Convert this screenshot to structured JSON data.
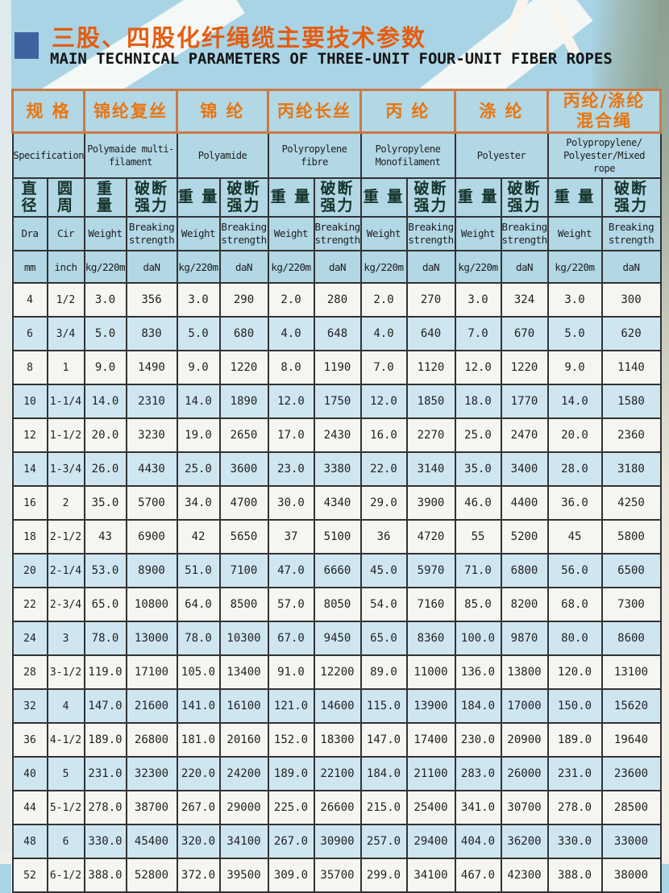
{
  "page": {
    "title_cn": "三股、四股化纤绳缆主要技术参数",
    "title_en": "MAIN TECHNICAL PARAMETERS OF THREE-UNIT FOUR-UNIT FIBER ROPES"
  },
  "table": {
    "spec_header": {
      "cn": "规 格",
      "en": "Specification"
    },
    "materials": [
      {
        "cn": "锦纶复丝",
        "en": "Polymaide multi-\nfilament"
      },
      {
        "cn": "锦 纶",
        "en": "Polyamide"
      },
      {
        "cn": "丙纶长丝",
        "en": "Polyropylene\nfibre"
      },
      {
        "cn": "丙 纶",
        "en": "Polyropylene\nMonofilament"
      },
      {
        "cn": "涤 纶",
        "en": "Polyester"
      },
      {
        "cn": "丙纶/涤纶\n混合绳",
        "en": "Polypropylene/\nPolyester/Mixed\nrope"
      }
    ],
    "sub_headers": {
      "diameter": {
        "cn": "直径",
        "en": "Dra",
        "unit": "mm"
      },
      "circumference": {
        "cn": "圆 周",
        "en": "Cir",
        "unit": "inch"
      },
      "weight": {
        "cn": "重 量",
        "en": "Weight",
        "unit": "kg/220m"
      },
      "breaking": {
        "cn": "破断\n强力",
        "en": "Breaking\nstrength",
        "unit": "daN"
      }
    },
    "rows": [
      [
        "4",
        "1/2",
        "3.0",
        "356",
        "3.0",
        "290",
        "2.0",
        "280",
        "2.0",
        "270",
        "3.0",
        "324",
        "3.0",
        "300"
      ],
      [
        "6",
        "3/4",
        "5.0",
        "830",
        "5.0",
        "680",
        "4.0",
        "648",
        "4.0",
        "640",
        "7.0",
        "670",
        "5.0",
        "620"
      ],
      [
        "8",
        "1",
        "9.0",
        "1490",
        "9.0",
        "1220",
        "8.0",
        "1190",
        "7.0",
        "1120",
        "12.0",
        "1220",
        "9.0",
        "1140"
      ],
      [
        "10",
        "1-1/4",
        "14.0",
        "2310",
        "14.0",
        "1890",
        "12.0",
        "1750",
        "12.0",
        "1850",
        "18.0",
        "1770",
        "14.0",
        "1580"
      ],
      [
        "12",
        "1-1/2",
        "20.0",
        "3230",
        "19.0",
        "2650",
        "17.0",
        "2430",
        "16.0",
        "2270",
        "25.0",
        "2470",
        "20.0",
        "2360"
      ],
      [
        "14",
        "1-3/4",
        "26.0",
        "4430",
        "25.0",
        "3600",
        "23.0",
        "3380",
        "22.0",
        "3140",
        "35.0",
        "3400",
        "28.0",
        "3180"
      ],
      [
        "16",
        "2",
        "35.0",
        "5700",
        "34.0",
        "4700",
        "30.0",
        "4340",
        "29.0",
        "3900",
        "46.0",
        "4400",
        "36.0",
        "4250"
      ],
      [
        "18",
        "2-1/2",
        "43",
        "6900",
        "42",
        "5650",
        "37",
        "5100",
        "36",
        "4720",
        "55",
        "5200",
        "45",
        "5800"
      ],
      [
        "20",
        "2-1/4",
        "53.0",
        "8900",
        "51.0",
        "7100",
        "47.0",
        "6660",
        "45.0",
        "5970",
        "71.0",
        "6800",
        "56.0",
        "6500"
      ],
      [
        "22",
        "2-3/4",
        "65.0",
        "10800",
        "64.0",
        "8500",
        "57.0",
        "8050",
        "54.0",
        "7160",
        "85.0",
        "8200",
        "68.0",
        "7300"
      ],
      [
        "24",
        "3",
        "78.0",
        "13000",
        "78.0",
        "10300",
        "67.0",
        "9450",
        "65.0",
        "8360",
        "100.0",
        "9870",
        "80.0",
        "8600"
      ],
      [
        "28",
        "3-1/2",
        "119.0",
        "17100",
        "105.0",
        "13400",
        "91.0",
        "12200",
        "89.0",
        "11000",
        "136.0",
        "13800",
        "120.0",
        "13100"
      ],
      [
        "32",
        "4",
        "147.0",
        "21600",
        "141.0",
        "16100",
        "121.0",
        "14600",
        "115.0",
        "13900",
        "184.0",
        "17000",
        "150.0",
        "15620"
      ],
      [
        "36",
        "4-1/2",
        "189.0",
        "26800",
        "181.0",
        "20160",
        "152.0",
        "18300",
        "147.0",
        "17400",
        "230.0",
        "20900",
        "189.0",
        "19640"
      ],
      [
        "40",
        "5",
        "231.0",
        "32300",
        "220.0",
        "24200",
        "189.0",
        "22100",
        "184.0",
        "21100",
        "283.0",
        "26000",
        "231.0",
        "23600"
      ],
      [
        "44",
        "5-1/2",
        "278.0",
        "38700",
        "267.0",
        "29000",
        "225.0",
        "26600",
        "215.0",
        "25400",
        "341.0",
        "30700",
        "278.0",
        "28500"
      ],
      [
        "48",
        "6",
        "330.0",
        "45400",
        "320.0",
        "34100",
        "267.0",
        "30900",
        "257.0",
        "29400",
        "404.0",
        "36200",
        "330.0",
        "33000"
      ],
      [
        "52",
        "6-1/2",
        "388.0",
        "52800",
        "372.0",
        "39500",
        "309.0",
        "35700",
        "299.0",
        "34100",
        "467.0",
        "42300",
        "388.0",
        "38000"
      ]
    ],
    "shaded_row_indices": [
      1,
      3,
      5,
      8,
      10,
      12,
      14,
      16
    ]
  },
  "colors": {
    "title_orange": "#e55d10",
    "header_text_orange": "#e8750f",
    "header_border_orange": "#c97a45",
    "header_bg_blue": "#b2d7e5",
    "shaded_row_blue": "#cfe6f1",
    "row_white": "#f7f5f1",
    "border_dark": "#333333",
    "bullet_blue": "#3e64a0",
    "page_blue": "#a8d4e6",
    "band_green": "#93a89c"
  }
}
